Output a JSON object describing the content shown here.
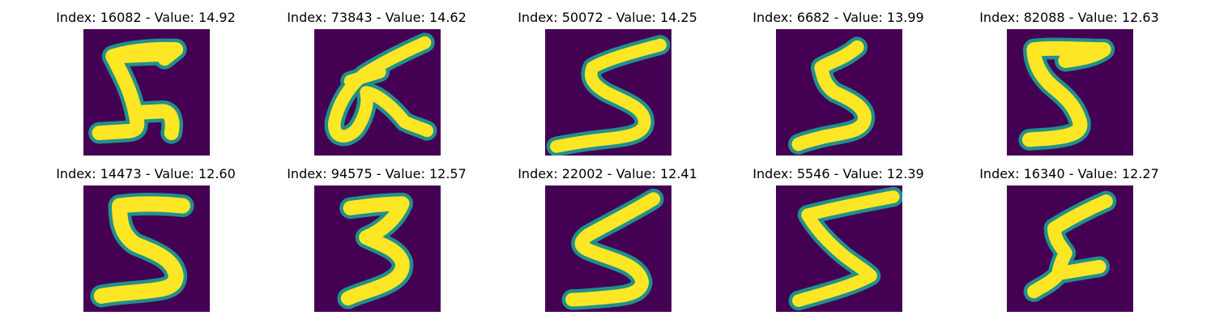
{
  "colors": {
    "background": "#440154",
    "edge": "#21908c",
    "stroke": "#fde725"
  },
  "panels": [
    {
      "title": "Index: 16082 - Value: 14.92",
      "digit": "5"
    },
    {
      "title": "Index: 73843 - Value: 14.62",
      "digit": "5"
    },
    {
      "title": "Index: 50072 - Value: 14.25",
      "digit": "5"
    },
    {
      "title": "Index: 6682 - Value: 13.99",
      "digit": "5"
    },
    {
      "title": "Index: 82088 - Value: 12.63",
      "digit": "5"
    },
    {
      "title": "Index: 14473 - Value: 12.60",
      "digit": "5"
    },
    {
      "title": "Index: 94575 - Value: 12.57",
      "digit": "3"
    },
    {
      "title": "Index: 22002 - Value: 12.41",
      "digit": "5"
    },
    {
      "title": "Index: 5546 - Value: 12.39",
      "digit": "5"
    },
    {
      "title": "Index: 16340 - Value: 12.27",
      "digit": "5"
    }
  ]
}
